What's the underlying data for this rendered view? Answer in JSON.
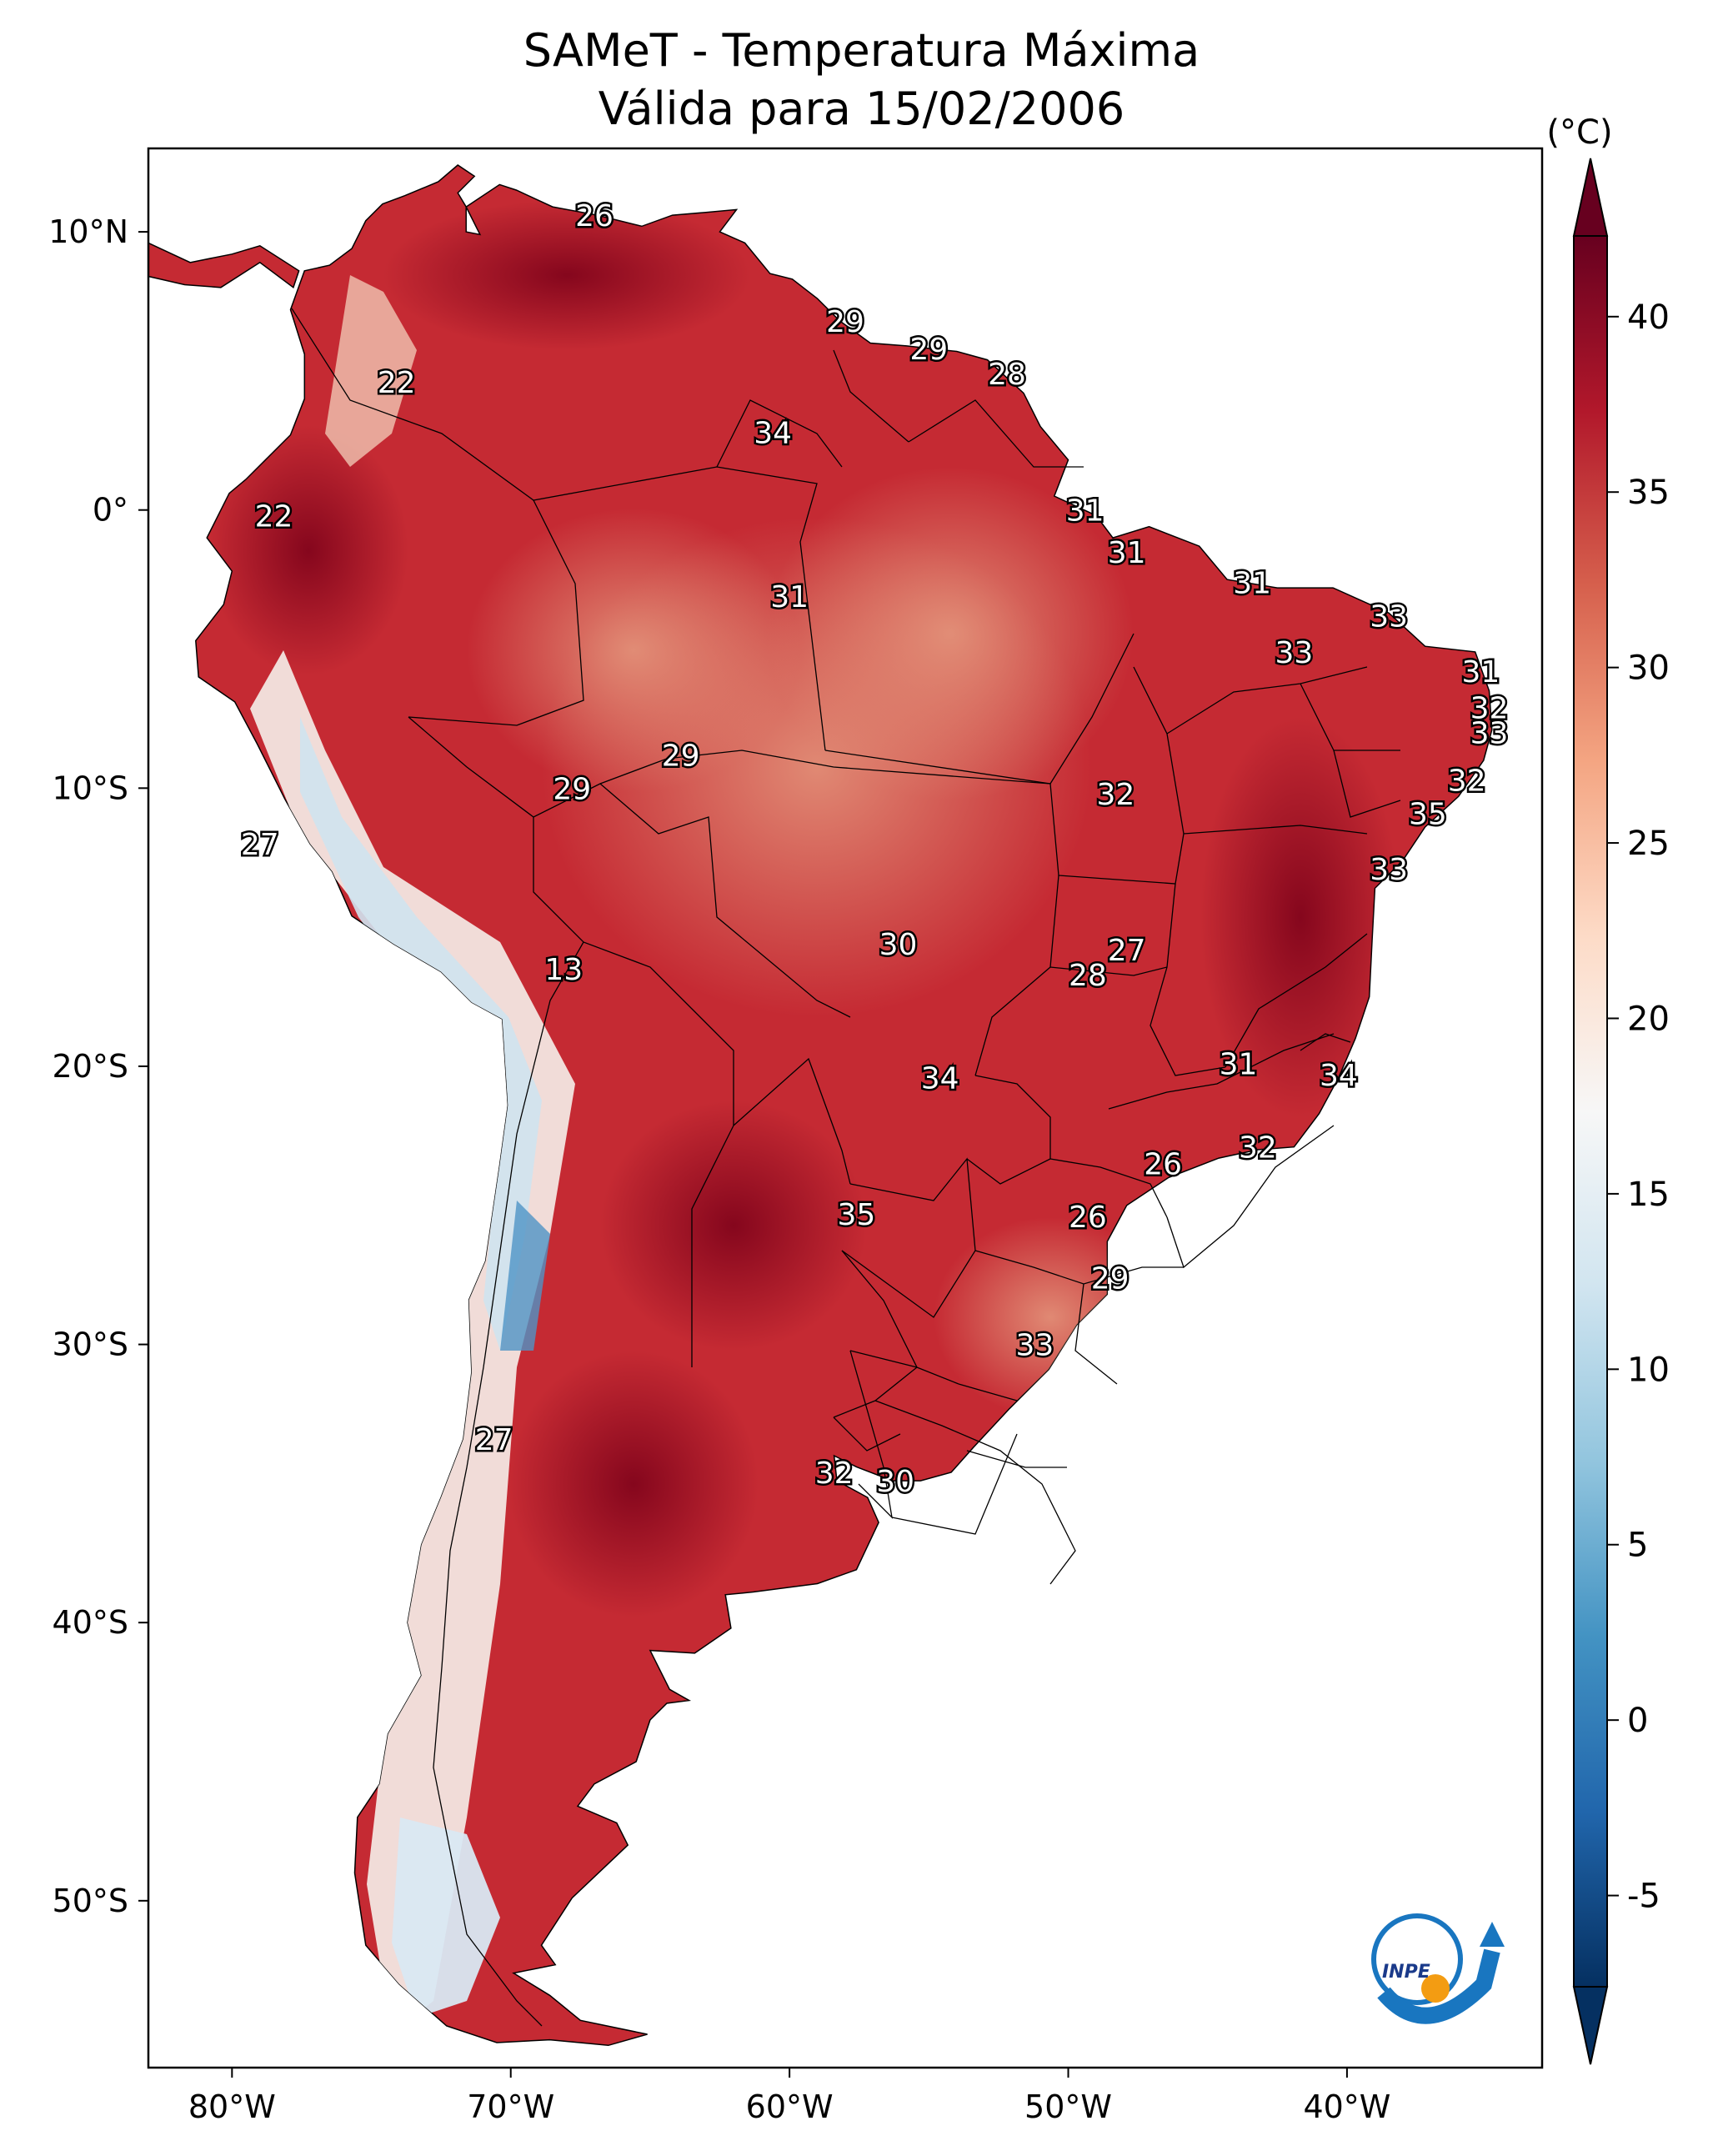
{
  "title": {
    "line1": "SAMeT - Temperatura Máxima",
    "line2": "Válida para 15/02/2006"
  },
  "map": {
    "variable": "Temperatura Máxima",
    "region": "South America",
    "lon_range": [
      -83,
      -33
    ],
    "lat_range": [
      -56,
      13
    ],
    "lat_ticks": [
      "10°N",
      "0°",
      "10°S",
      "20°S",
      "30°S",
      "40°S",
      "50°S"
    ],
    "lon_ticks": [
      "80°W",
      "70°W",
      "60°W",
      "50°W",
      "40°W"
    ],
    "point_labels": [
      {
        "text": "26",
        "lon": -67.0,
        "lat": 10.6
      },
      {
        "text": "22",
        "lon": -74.1,
        "lat": 4.6
      },
      {
        "text": "29",
        "lon": -58.0,
        "lat": 6.8
      },
      {
        "text": "29",
        "lon": -55.0,
        "lat": 5.8
      },
      {
        "text": "28",
        "lon": -52.2,
        "lat": 4.9
      },
      {
        "text": "34",
        "lon": -60.6,
        "lat": 2.8
      },
      {
        "text": "22",
        "lon": -78.5,
        "lat": -0.2
      },
      {
        "text": "31",
        "lon": -49.4,
        "lat": 0.0
      },
      {
        "text": "31",
        "lon": -60.0,
        "lat": -3.1
      },
      {
        "text": "31",
        "lon": -47.9,
        "lat": -1.5
      },
      {
        "text": "31",
        "lon": -43.4,
        "lat": -2.6
      },
      {
        "text": "33",
        "lon": -38.5,
        "lat": -3.8
      },
      {
        "text": "33",
        "lon": -41.9,
        "lat": -5.1
      },
      {
        "text": "31",
        "lon": -35.2,
        "lat": -5.8
      },
      {
        "text": "32",
        "lon": -34.9,
        "lat": -7.1
      },
      {
        "text": "33",
        "lon": -34.9,
        "lat": -8.0
      },
      {
        "text": "32",
        "lon": -35.7,
        "lat": -9.7
      },
      {
        "text": "29",
        "lon": -63.9,
        "lat": -8.8
      },
      {
        "text": "29",
        "lon": -67.8,
        "lat": -10.0
      },
      {
        "text": "32",
        "lon": -48.3,
        "lat": -10.2
      },
      {
        "text": "35",
        "lon": -37.1,
        "lat": -10.9
      },
      {
        "text": "27",
        "lon": -79.0,
        "lat": -12.0
      },
      {
        "text": "33",
        "lon": -38.5,
        "lat": -12.9
      },
      {
        "text": "30",
        "lon": -56.1,
        "lat": -15.6
      },
      {
        "text": "27",
        "lon": -47.9,
        "lat": -15.8
      },
      {
        "text": "13",
        "lon": -68.1,
        "lat": -16.5
      },
      {
        "text": "28",
        "lon": -49.3,
        "lat": -16.7
      },
      {
        "text": "31",
        "lon": -43.9,
        "lat": -19.9
      },
      {
        "text": "34",
        "lon": -54.6,
        "lat": -20.4
      },
      {
        "text": "34",
        "lon": -40.3,
        "lat": -20.3
      },
      {
        "text": "32",
        "lon": -43.2,
        "lat": -22.9
      },
      {
        "text": "26",
        "lon": -46.6,
        "lat": -23.5
      },
      {
        "text": "35",
        "lon": -57.6,
        "lat": -25.3
      },
      {
        "text": "26",
        "lon": -49.3,
        "lat": -25.4
      },
      {
        "text": "29",
        "lon": -48.5,
        "lat": -27.6
      },
      {
        "text": "33",
        "lon": -51.2,
        "lat": -30.0
      },
      {
        "text": "27",
        "lon": -70.6,
        "lat": -33.4
      },
      {
        "text": "32",
        "lon": -58.4,
        "lat": -34.6
      },
      {
        "text": "30",
        "lon": -56.2,
        "lat": -34.9
      }
    ]
  },
  "colorbar": {
    "unit": "(°C)",
    "min": -5,
    "max": 40,
    "ticks": [
      "40",
      "35",
      "30",
      "25",
      "20",
      "15",
      "10",
      "5",
      "0",
      "-5"
    ],
    "colors": [
      "#053061",
      "#2166ac",
      "#4393c3",
      "#92c5de",
      "#d1e5f0",
      "#f7f7f7",
      "#fddbc7",
      "#f4a582",
      "#d6604d",
      "#b2182b",
      "#67001f"
    ]
  },
  "logo": {
    "text": "INPE",
    "colors": [
      "#1976c0",
      "#f39c12"
    ]
  }
}
